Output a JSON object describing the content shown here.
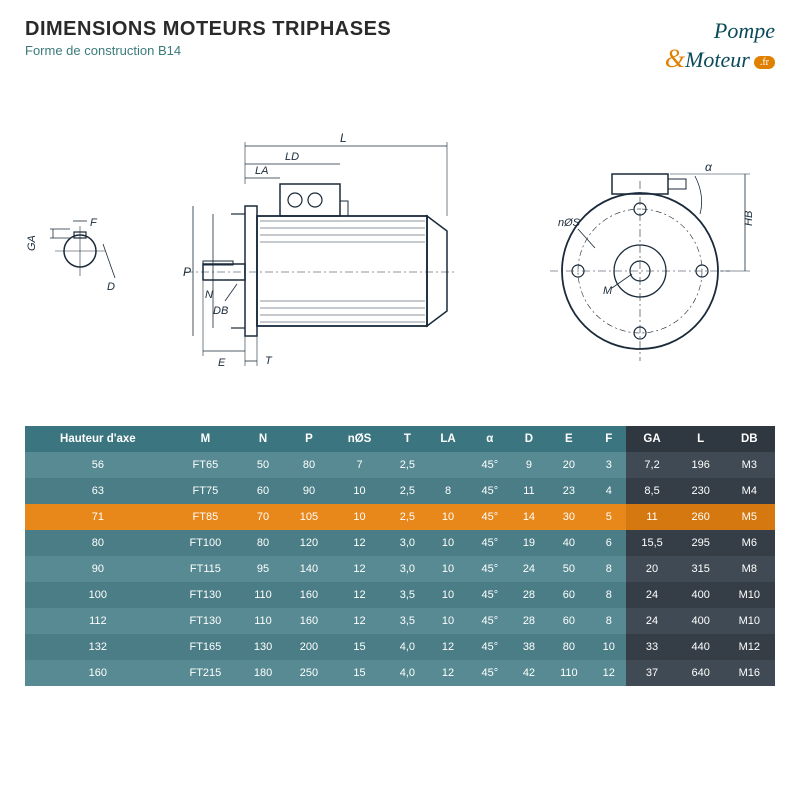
{
  "title": "DIMENSIONS MOTEURS TRIPHASES",
  "subtitle": "Forme de construction B14",
  "logo": {
    "pompe": "Pompe",
    "amp": "&",
    "moteur": "Moteur",
    "fr": ".fr"
  },
  "colors": {
    "th1": "#3a7580",
    "th2": "#2f3740",
    "row1a": "#578a92",
    "row1b": "#4a7d85",
    "row2a": "#404a54",
    "row2b": "#353e47",
    "hl1": "#e8871a",
    "hl2": "#d67810"
  },
  "diagram_labels": [
    "GA",
    "F",
    "D",
    "P",
    "N",
    "DB",
    "E",
    "T",
    "LA",
    "LD",
    "L",
    "nØS",
    "M",
    "HB",
    "α"
  ],
  "table": {
    "columns": [
      "Hauteur d'axe",
      "M",
      "N",
      "P",
      "nØS",
      "T",
      "LA",
      "α",
      "D",
      "E",
      "F",
      "GA",
      "L",
      "DB"
    ],
    "dark_cols_from": 11,
    "highlight_row": 2,
    "rows": [
      [
        "56",
        "FT65",
        "50",
        "80",
        "7",
        "2,5",
        "",
        "45°",
        "9",
        "20",
        "3",
        "7,2",
        "196",
        "M3"
      ],
      [
        "63",
        "FT75",
        "60",
        "90",
        "10",
        "2,5",
        "8",
        "45°",
        "11",
        "23",
        "4",
        "8,5",
        "230",
        "M4"
      ],
      [
        "71",
        "FT85",
        "70",
        "105",
        "10",
        "2,5",
        "10",
        "45°",
        "14",
        "30",
        "5",
        "11",
        "260",
        "M5"
      ],
      [
        "80",
        "FT100",
        "80",
        "120",
        "12",
        "3,0",
        "10",
        "45°",
        "19",
        "40",
        "6",
        "15,5",
        "295",
        "M6"
      ],
      [
        "90",
        "FT115",
        "95",
        "140",
        "12",
        "3,0",
        "10",
        "45°",
        "24",
        "50",
        "8",
        "20",
        "315",
        "M8"
      ],
      [
        "100",
        "FT130",
        "110",
        "160",
        "12",
        "3,5",
        "10",
        "45°",
        "28",
        "60",
        "8",
        "24",
        "400",
        "M10"
      ],
      [
        "112",
        "FT130",
        "110",
        "160",
        "12",
        "3,5",
        "10",
        "45°",
        "28",
        "60",
        "8",
        "24",
        "400",
        "M10"
      ],
      [
        "132",
        "FT165",
        "130",
        "200",
        "15",
        "4,0",
        "12",
        "45°",
        "38",
        "80",
        "10",
        "33",
        "440",
        "M12"
      ],
      [
        "160",
        "FT215",
        "180",
        "250",
        "15",
        "4,0",
        "12",
        "45°",
        "42",
        "110",
        "12",
        "37",
        "640",
        "M16"
      ]
    ]
  }
}
